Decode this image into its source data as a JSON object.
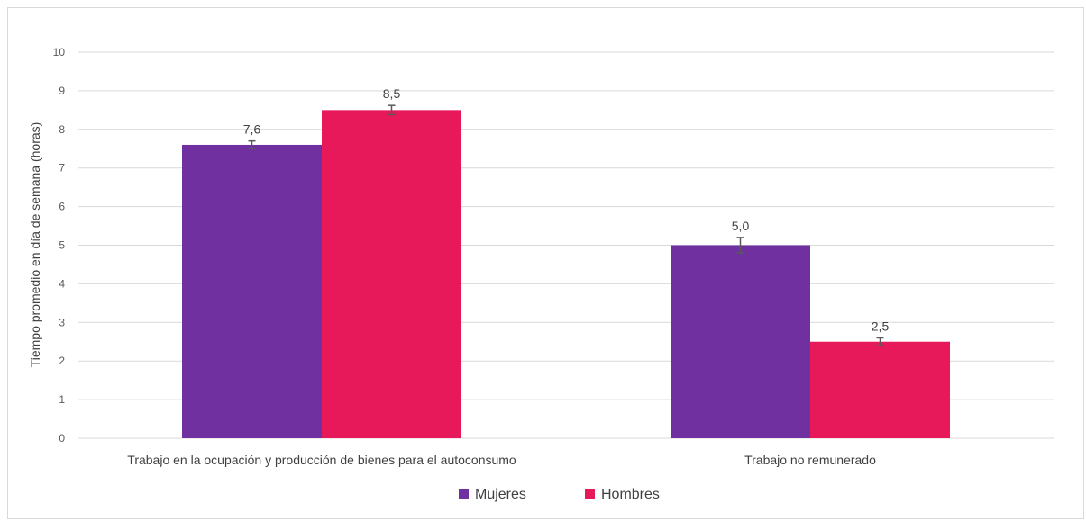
{
  "chart_data": {
    "type": "bar",
    "categories": [
      "Trabajo en la ocupación y producción de bienes para el autoconsumo",
      "Trabajo no remunerado"
    ],
    "series": [
      {
        "name": "Mujeres",
        "values": [
          7.6,
          5.0
        ],
        "labels": [
          "7,6",
          "5,0"
        ],
        "errors": [
          0.1,
          0.2
        ],
        "color": "#7030a0"
      },
      {
        "name": "Hombres",
        "values": [
          8.5,
          2.5
        ],
        "labels": [
          "8,5",
          "2,5"
        ],
        "errors": [
          0.12,
          0.1
        ],
        "color": "#e8195a"
      }
    ],
    "ylabel": "Tiempo promedio en día de semana (horas)",
    "xlabel": "",
    "ylim": [
      0,
      10
    ],
    "yticks": [
      "0",
      "1",
      "2",
      "3",
      "4",
      "5",
      "6",
      "7",
      "8",
      "9",
      "10"
    ],
    "grid": true,
    "legend_position": "bottom"
  }
}
